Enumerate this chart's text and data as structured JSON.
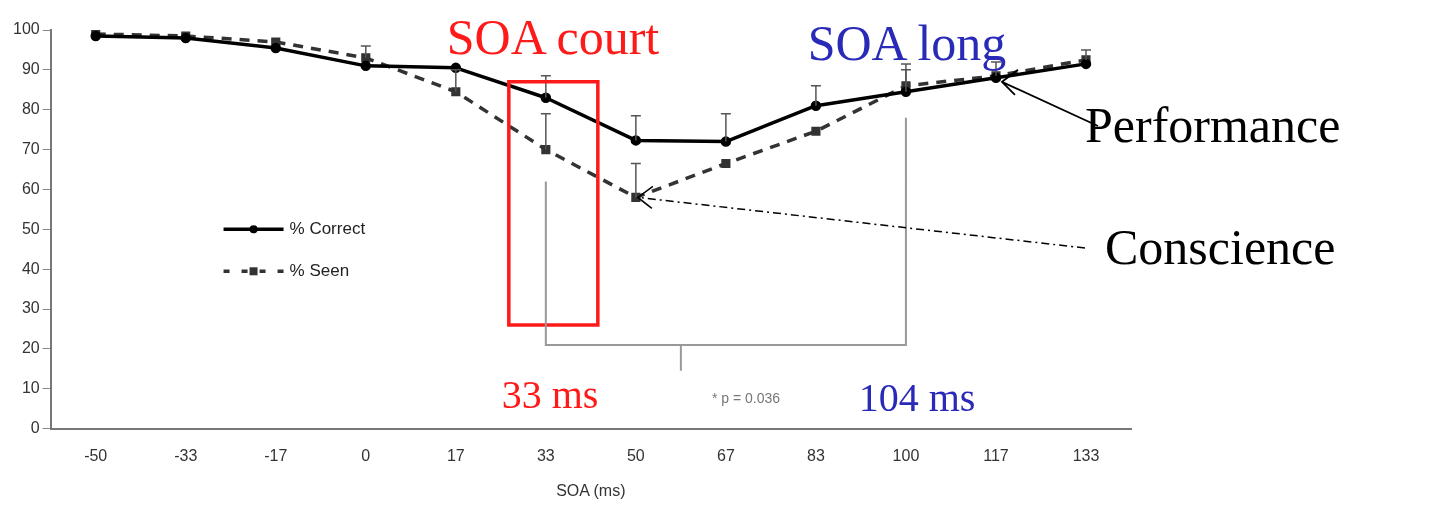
{
  "chart_data": {
    "type": "line",
    "xlabel": "SOA (ms)",
    "categories": [
      "-50",
      "-33",
      "-17",
      "0",
      "17",
      "33",
      "50",
      "67",
      "83",
      "100",
      "117",
      "133"
    ],
    "series": [
      {
        "name": "% Correct",
        "color": "#000000",
        "marker": "circle",
        "line_style": "solid",
        "values": [
          98.5,
          98,
          95.5,
          91,
          90.5,
          83,
          72.3,
          72,
          81,
          84.5,
          88,
          91.5
        ],
        "errors": [
          null,
          null,
          null,
          null,
          null,
          [
            83,
            88.5
          ],
          [
            72.3,
            78.5
          ],
          [
            72,
            79
          ],
          [
            81,
            86
          ],
          [
            84.5,
            90
          ],
          null,
          null
        ]
      },
      {
        "name": "% Seen",
        "color": "#333333",
        "marker": "square",
        "line_style": "dashed",
        "values": [
          99,
          98.5,
          97,
          93,
          84.5,
          70,
          58,
          66.5,
          74.6,
          86,
          88.5,
          92.5
        ],
        "errors": [
          null,
          null,
          null,
          [
            93,
            96
          ],
          [
            84.5,
            90
          ],
          [
            70,
            79
          ],
          [
            58,
            66.5
          ],
          null,
          null,
          [
            86,
            91.5
          ],
          [
            88.5,
            92
          ],
          [
            92.5,
            95
          ]
        ]
      }
    ],
    "ylim": [
      0,
      100
    ],
    "yticks": [
      0,
      10,
      20,
      30,
      40,
      50,
      60,
      70,
      80,
      90,
      100
    ],
    "grid": false,
    "legend": "left",
    "annotations": [
      "SOA court",
      "SOA long",
      {
        "text": "Performance",
        "x": "117",
        "y": 88
      },
      {
        "text": "Conscience",
        "x": "50",
        "y": 58
      },
      "33 ms",
      "104 ms",
      "* p = 0.036"
    ]
  }
}
